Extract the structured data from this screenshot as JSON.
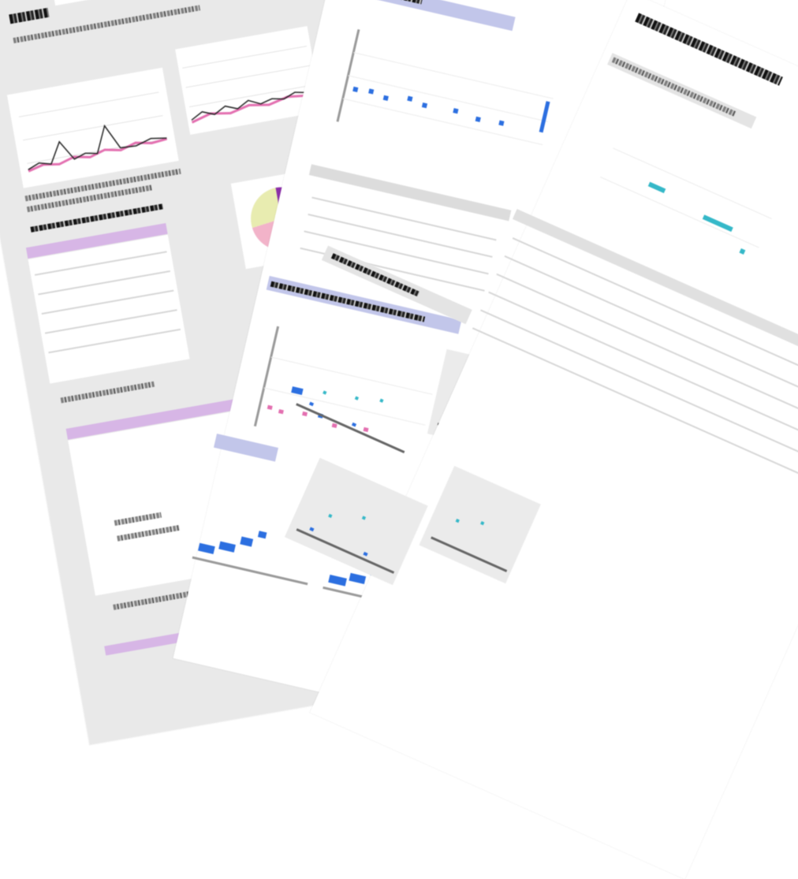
{
  "scene": {
    "description_free": true,
    "colors": {
      "background": "#ffffff",
      "sheet_gray": "#e9e9e9",
      "sheet_white": "#ffffff",
      "accent_purple": "#d7b6e6",
      "accent_blue": "#c2c6ea",
      "series_pink": "#e36fb0",
      "series_blue": "#2c6fe0",
      "series_cyan": "#35b8c8",
      "pie_purple": "#8a2ea8",
      "pie_yellow": "#e8ecb0",
      "pie_pink": "#f2b3c9"
    }
  },
  "sheets": [
    {
      "name": "back-sheet",
      "tone": "gray"
    },
    {
      "name": "middle-sheet",
      "tone": "white"
    },
    {
      "name": "front-sheet",
      "tone": "white"
    }
  ]
}
